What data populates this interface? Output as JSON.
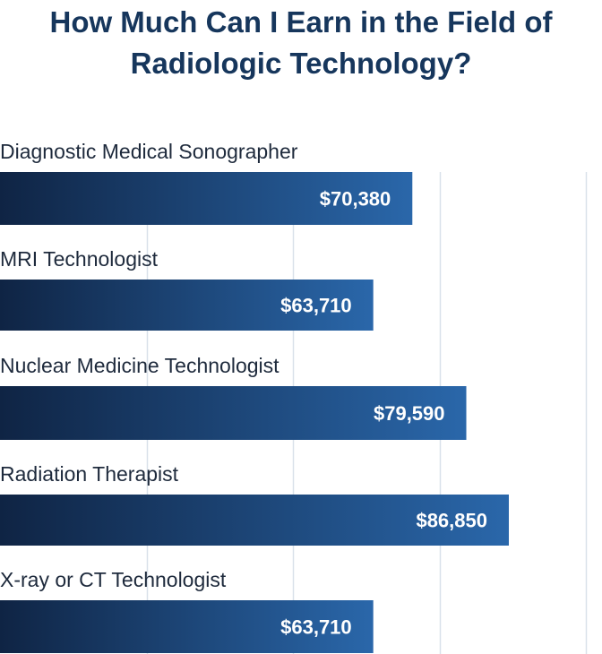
{
  "title_lines": [
    "How Much Can I Earn in the Field of",
    "Radiologic Technology?"
  ],
  "colors": {
    "title": "#16365c",
    "bar_start": "#0f2444",
    "bar_end": "#2a67aa",
    "grid": "#d9e1ea",
    "label": "#1e2a3c",
    "value_text": "#ffffff"
  },
  "chart_data": {
    "type": "bar",
    "orientation": "horizontal",
    "title": "How Much Can I Earn in the Field of Radiologic Technology?",
    "categories": [
      "Diagnostic Medical Sonographer",
      "MRI Technologist",
      "Nuclear Medicine Technologist",
      "Radiation Therapist",
      "X-ray or CT Technologist"
    ],
    "values": [
      70380,
      63710,
      79590,
      86850,
      63710
    ],
    "value_labels": [
      "$70,380",
      "$63,710",
      "$79,590",
      "$86,850",
      "$63,710"
    ],
    "xlim": [
      0,
      100000
    ],
    "grid": true
  }
}
